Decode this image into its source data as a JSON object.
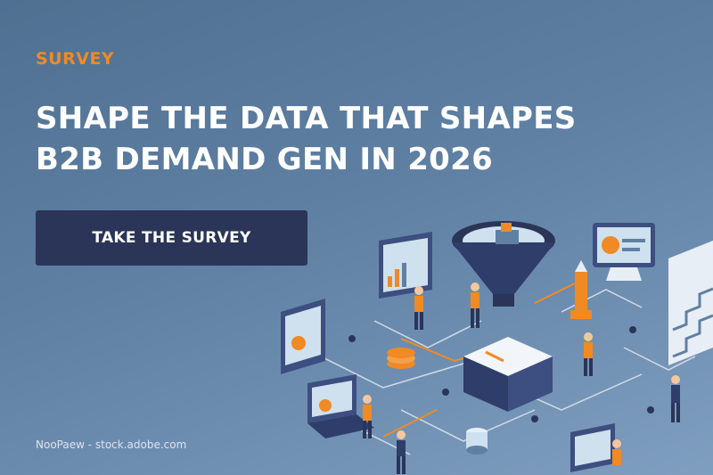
{
  "banner": {
    "eyebrow": "SURVEY",
    "headline_line1": "SHAPE THE DATA THAT SHAPES",
    "headline_line2": "B2B DEMAND GEN IN 2026",
    "cta_label": "TAKE THE SURVEY",
    "image_credit": "NooPaew - stock.adobe.com"
  },
  "colors": {
    "accent": "#f08a24",
    "button": "#2a3558",
    "background_top": "#4f7091",
    "background_bottom": "#7f9ec0"
  },
  "illustration": {
    "icons": [
      "funnel-icon",
      "monitor-icon",
      "cube-icon",
      "person-icon",
      "coin-stack-icon",
      "chart-panel-icon",
      "staircase-icon",
      "laptop-icon",
      "database-icon"
    ]
  }
}
